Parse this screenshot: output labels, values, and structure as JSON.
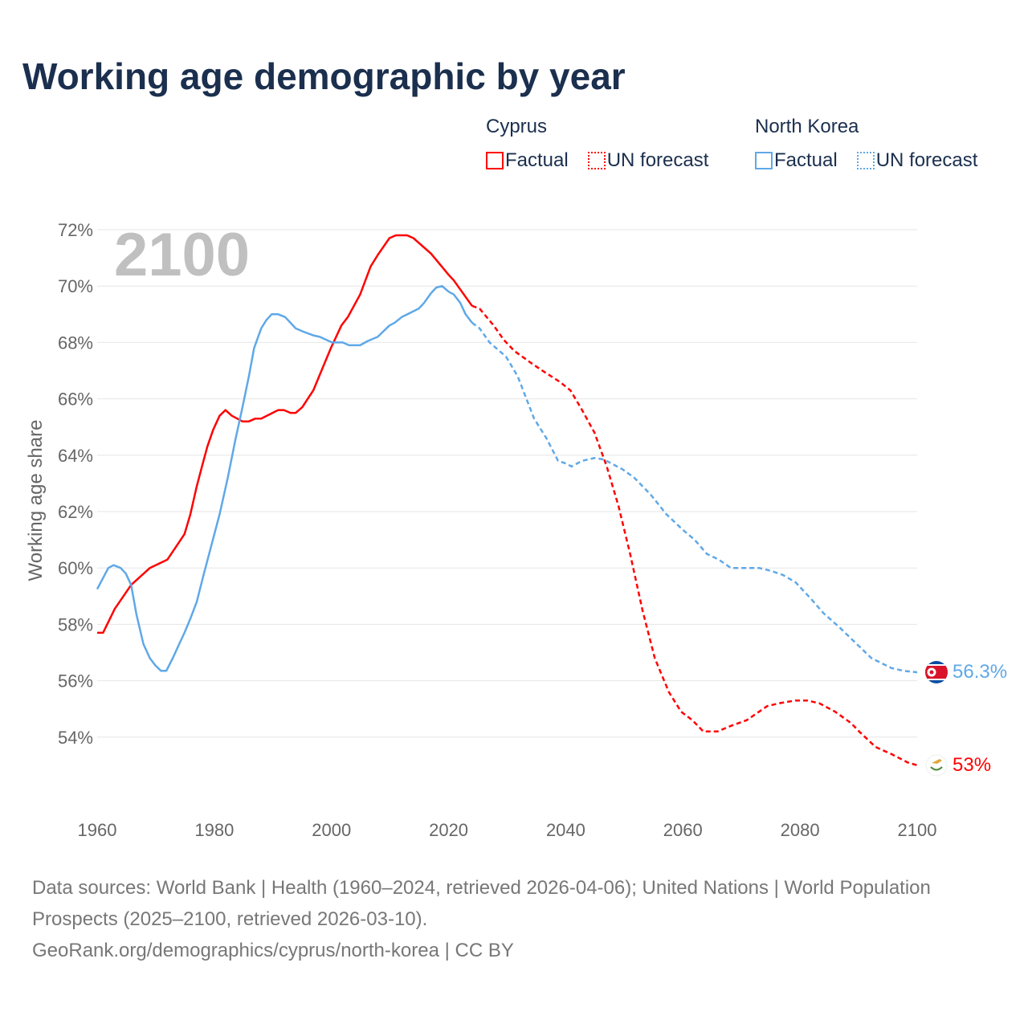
{
  "title": "Working age demographic by year",
  "legend": {
    "groups": [
      {
        "name": "Cyprus",
        "color": "#ff0000",
        "factual": "Factual",
        "forecast": "UN forecast"
      },
      {
        "name": "North Korea",
        "color": "#5fa8e8",
        "factual": "Factual",
        "forecast": "UN forecast"
      }
    ]
  },
  "year_label": "2100",
  "end_labels": {
    "cyprus": "53%",
    "north_korea": "56.3%"
  },
  "footer": {
    "line1": "Data sources: World Bank | Health (1960–2024, retrieved 2026-04-06); United Nations | World Population Prospects (2025–2100, retrieved 2026-03-10).",
    "line2": "GeoRank.org/demographics/cyprus/north-korea | CC BY"
  },
  "chart_data": {
    "type": "line",
    "title": "Working age demographic by year",
    "xlabel": "",
    "ylabel": "Working age share",
    "xlim": [
      1960,
      2100
    ],
    "ylim": [
      52.2,
      72
    ],
    "x_ticks": [
      1960,
      1980,
      2000,
      2020,
      2040,
      2060,
      2080,
      2100
    ],
    "y_ticks": [
      54,
      56,
      58,
      60,
      62,
      64,
      66,
      68,
      70,
      72
    ],
    "y_tick_labels": [
      "54%",
      "56%",
      "58%",
      "60%",
      "62%",
      "64%",
      "66%",
      "68%",
      "70%",
      "72%"
    ],
    "grid": true,
    "series": [
      {
        "name": "Cyprus",
        "color": "#ff0000",
        "factual": [
          [
            1960,
            57.7
          ],
          [
            1961,
            57.7
          ],
          [
            1963,
            58.55
          ],
          [
            1965.8,
            59.4
          ],
          [
            1969,
            60.0
          ],
          [
            1972,
            60.3
          ],
          [
            1974.9,
            61.2
          ],
          [
            1975.9,
            61.9
          ],
          [
            1977,
            62.9
          ],
          [
            1977.9,
            63.6
          ],
          [
            1978.8,
            64.3
          ],
          [
            1979.8,
            64.9
          ],
          [
            1980.9,
            65.4
          ],
          [
            1981.9,
            65.6
          ],
          [
            1983,
            65.4
          ],
          [
            1984.8,
            65.2
          ],
          [
            1985.9,
            65.2
          ],
          [
            1987,
            65.3
          ],
          [
            1988,
            65.3
          ],
          [
            1990.9,
            65.6
          ],
          [
            1991.9,
            65.6
          ],
          [
            1993,
            65.5
          ],
          [
            1993.9,
            65.5
          ],
          [
            1995,
            65.7
          ],
          [
            1996.9,
            66.3
          ],
          [
            1998.3,
            67.0
          ],
          [
            1999.9,
            67.8
          ],
          [
            2001.7,
            68.6
          ],
          [
            2002.8,
            68.9
          ],
          [
            2004.9,
            69.7
          ],
          [
            2006.7,
            70.7
          ],
          [
            2007.9,
            71.1
          ],
          [
            2009.9,
            71.7
          ],
          [
            2011,
            71.8
          ],
          [
            2012.9,
            71.8
          ],
          [
            2014,
            71.7
          ],
          [
            2017,
            71.15
          ],
          [
            2018.8,
            70.7
          ],
          [
            2020,
            70.4
          ],
          [
            2020.9,
            70.2
          ],
          [
            2024,
            69.3
          ]
        ],
        "forecast": [
          [
            2024,
            69.3
          ],
          [
            2025.3,
            69.2
          ],
          [
            2027.7,
            68.6
          ],
          [
            2029.4,
            68.1
          ],
          [
            2031.2,
            67.7
          ],
          [
            2033.9,
            67.3
          ],
          [
            2036,
            67.0
          ],
          [
            2039,
            66.6
          ],
          [
            2040.8,
            66.3
          ],
          [
            2042.8,
            65.6
          ],
          [
            2044.9,
            64.8
          ],
          [
            2047,
            63.6
          ],
          [
            2049,
            62.2
          ],
          [
            2051,
            60.5
          ],
          [
            2053.1,
            58.5
          ],
          [
            2055.2,
            56.8
          ],
          [
            2057.6,
            55.6
          ],
          [
            2059.7,
            54.9
          ],
          [
            2061.6,
            54.6
          ],
          [
            2063.5,
            54.2
          ],
          [
            2065.9,
            54.2
          ],
          [
            2068.2,
            54.4
          ],
          [
            2070.9,
            54.6
          ],
          [
            2073,
            54.9
          ],
          [
            2074.4,
            55.1
          ],
          [
            2076.4,
            55.2
          ],
          [
            2079.2,
            55.3
          ],
          [
            2081.2,
            55.3
          ],
          [
            2083.3,
            55.2
          ],
          [
            2086,
            54.9
          ],
          [
            2088.7,
            54.5
          ],
          [
            2090.1,
            54.2
          ],
          [
            2092.9,
            53.65
          ],
          [
            2095.6,
            53.4
          ],
          [
            2098.4,
            53.1
          ],
          [
            2100,
            53.0
          ]
        ]
      },
      {
        "name": "North Korea",
        "color": "#5fa8e8",
        "factual": [
          [
            1960,
            59.25
          ],
          [
            1961.9,
            60.0
          ],
          [
            1962.8,
            60.1
          ],
          [
            1964,
            60.0
          ],
          [
            1964.9,
            59.8
          ],
          [
            1965.8,
            59.4
          ],
          [
            1966.7,
            58.35
          ],
          [
            1967.9,
            57.3
          ],
          [
            1969,
            56.8
          ],
          [
            1969.9,
            56.55
          ],
          [
            1970.9,
            56.35
          ],
          [
            1971.8,
            56.35
          ],
          [
            1972.9,
            56.8
          ],
          [
            1974,
            57.3
          ],
          [
            1974.9,
            57.7
          ],
          [
            1975.9,
            58.2
          ],
          [
            1977,
            58.8
          ],
          [
            1978.1,
            59.7
          ],
          [
            1979.5,
            60.8
          ],
          [
            1980.9,
            61.9
          ],
          [
            1982.3,
            63.2
          ],
          [
            1983.6,
            64.55
          ],
          [
            1984.8,
            65.7
          ],
          [
            1985.9,
            66.8
          ],
          [
            1986.8,
            67.8
          ],
          [
            1988,
            68.5
          ],
          [
            1988.9,
            68.8
          ],
          [
            1989.8,
            69.0
          ],
          [
            1990.9,
            69.0
          ],
          [
            1992.1,
            68.9
          ],
          [
            1993.9,
            68.5
          ],
          [
            1995,
            68.4
          ],
          [
            1996.9,
            68.25
          ],
          [
            1998,
            68.2
          ],
          [
            2000.1,
            68.0
          ],
          [
            2001.9,
            68.0
          ],
          [
            2003,
            67.9
          ],
          [
            2004.9,
            67.9
          ],
          [
            2006.2,
            68.05
          ],
          [
            2007.9,
            68.2
          ],
          [
            2009.9,
            68.6
          ],
          [
            2010.8,
            68.7
          ],
          [
            2012,
            68.9
          ],
          [
            2014.9,
            69.2
          ],
          [
            2015.8,
            69.4
          ],
          [
            2017,
            69.75
          ],
          [
            2017.9,
            69.95
          ],
          [
            2018.9,
            70.0
          ],
          [
            2020,
            69.8
          ],
          [
            2020.9,
            69.7
          ],
          [
            2022,
            69.4
          ],
          [
            2022.9,
            69.0
          ],
          [
            2024,
            68.7
          ]
        ],
        "forecast": [
          [
            2024,
            68.7
          ],
          [
            2025.3,
            68.5
          ],
          [
            2027,
            68.0
          ],
          [
            2029.8,
            67.5
          ],
          [
            2031.8,
            66.8
          ],
          [
            2034.6,
            65.3
          ],
          [
            2036.7,
            64.6
          ],
          [
            2038.7,
            63.8
          ],
          [
            2040.1,
            63.7
          ],
          [
            2041,
            63.6
          ],
          [
            2042.8,
            63.8
          ],
          [
            2044.9,
            63.9
          ],
          [
            2046.5,
            63.85
          ],
          [
            2049.7,
            63.5
          ],
          [
            2051.7,
            63.2
          ],
          [
            2054.5,
            62.6
          ],
          [
            2057.2,
            61.9
          ],
          [
            2060,
            61.35
          ],
          [
            2062,
            61.0
          ],
          [
            2064.1,
            60.5
          ],
          [
            2066.1,
            60.3
          ],
          [
            2068.2,
            60.0
          ],
          [
            2073,
            60.0
          ],
          [
            2075,
            59.9
          ],
          [
            2077.1,
            59.75
          ],
          [
            2079.2,
            59.5
          ],
          [
            2081.9,
            58.9
          ],
          [
            2084,
            58.4
          ],
          [
            2086.7,
            57.9
          ],
          [
            2088.7,
            57.5
          ],
          [
            2092.2,
            56.8
          ],
          [
            2095.6,
            56.45
          ],
          [
            2097.7,
            56.35
          ],
          [
            2100,
            56.3
          ]
        ]
      }
    ]
  }
}
